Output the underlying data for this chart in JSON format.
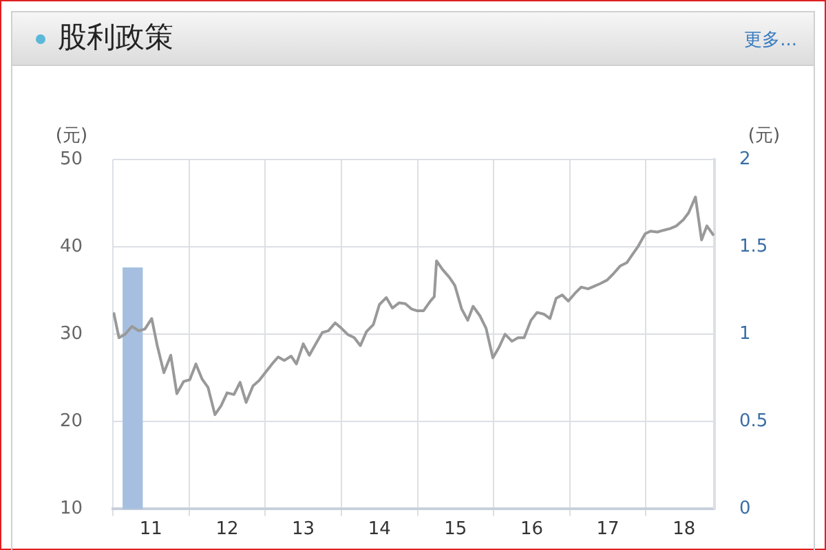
{
  "chart_data": {
    "type": "line",
    "title": "股利政策",
    "annotations": [
      "更多..."
    ],
    "ylabel": "(元)",
    "y2label": "(元)",
    "xlim": [
      11,
      18.9
    ],
    "xticks": [
      {
        "value": 11,
        "label": null
      },
      {
        "value": 11.5,
        "label": "11"
      },
      {
        "value": 12,
        "label": null
      },
      {
        "value": 12.5,
        "label": "12"
      },
      {
        "value": 13,
        "label": null
      },
      {
        "value": 13.5,
        "label": "13"
      },
      {
        "value": 14,
        "label": null
      },
      {
        "value": 14.5,
        "label": "14"
      },
      {
        "value": 15,
        "label": null
      },
      {
        "value": 15.5,
        "label": "15"
      },
      {
        "value": 16,
        "label": null
      },
      {
        "value": 16.5,
        "label": "16"
      },
      {
        "value": 17,
        "label": null
      },
      {
        "value": 17.5,
        "label": "17"
      },
      {
        "value": 18,
        "label": null
      },
      {
        "value": 18.5,
        "label": "18"
      }
    ],
    "ylim": [
      10,
      50
    ],
    "yticks": [
      10,
      20,
      30,
      40,
      50
    ],
    "y2lim": [
      0,
      2
    ],
    "y2ticks": [
      0,
      0.5,
      1,
      1.5,
      2
    ],
    "grid": true,
    "legend": false,
    "marker": "none",
    "series": [
      {
        "type": "bar",
        "axis": "y2",
        "color": "#a6bfe0",
        "x": [
          11.26
        ],
        "values": [
          1.38
        ]
      },
      {
        "color": "#999999",
        "x": [
          11.01,
          11.08,
          11.16,
          11.25,
          11.34,
          11.42,
          11.51,
          11.58,
          11.67,
          11.76,
          11.84,
          11.93,
          12.01,
          12.09,
          12.17,
          12.25,
          12.34,
          12.42,
          12.5,
          12.59,
          12.67,
          12.75,
          12.84,
          12.92,
          13.01,
          13.09,
          13.17,
          13.25,
          13.34,
          13.41,
          13.5,
          13.58,
          13.67,
          13.75,
          13.83,
          13.92,
          14.0,
          14.08,
          14.17,
          14.25,
          14.33,
          14.42,
          14.5,
          14.59,
          14.67,
          14.76,
          14.84,
          14.92,
          14.99,
          15.08,
          15.17,
          15.22,
          15.25,
          15.33,
          15.42,
          15.49,
          15.58,
          15.66,
          15.73,
          15.82,
          15.9,
          15.99,
          16.07,
          16.15,
          16.24,
          16.32,
          16.4,
          16.49,
          16.57,
          16.66,
          16.74,
          16.82,
          16.9,
          16.98,
          17.07,
          17.15,
          17.24,
          17.32,
          17.4,
          17.49,
          17.57,
          17.66,
          17.75,
          17.82,
          17.9,
          17.99,
          18.06,
          18.15,
          18.23,
          18.32,
          18.4,
          18.49,
          18.56,
          18.65,
          18.73,
          18.8,
          18.89
        ],
        "values": [
          32.5,
          29.6,
          30.0,
          30.9,
          30.4,
          30.6,
          31.8,
          28.8,
          25.6,
          27.6,
          23.2,
          24.6,
          24.8,
          26.6,
          24.9,
          23.9,
          20.8,
          21.8,
          23.3,
          23.1,
          24.5,
          22.2,
          24.1,
          24.7,
          25.7,
          26.6,
          27.4,
          27.0,
          27.5,
          26.6,
          28.9,
          27.6,
          29.0,
          30.2,
          30.4,
          31.3,
          30.7,
          30.0,
          29.6,
          28.7,
          30.3,
          31.1,
          33.4,
          34.2,
          33.0,
          33.6,
          33.5,
          32.9,
          32.7,
          32.7,
          33.8,
          34.3,
          38.4,
          37.4,
          36.5,
          35.6,
          32.9,
          31.6,
          33.2,
          32.1,
          30.7,
          27.3,
          28.5,
          30.0,
          29.2,
          29.6,
          29.6,
          31.6,
          32.5,
          32.3,
          31.8,
          34.1,
          34.5,
          33.8,
          34.7,
          35.4,
          35.2,
          35.5,
          35.8,
          36.2,
          36.9,
          37.8,
          38.2,
          39.1,
          40.1,
          41.5,
          41.8,
          41.7,
          41.9,
          42.1,
          42.4,
          43.1,
          43.9,
          45.7,
          40.8,
          42.4,
          41.3
        ]
      }
    ]
  }
}
